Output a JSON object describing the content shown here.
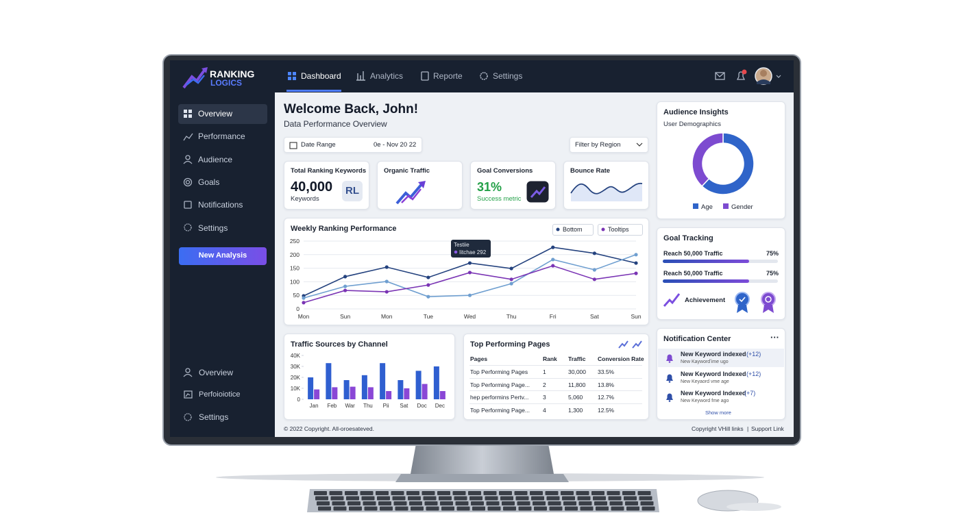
{
  "brand": {
    "line1": "RANKING",
    "line2": "LOGICS"
  },
  "topnav": [
    "Dashboard",
    "Analytics",
    "Reporte",
    "Settings"
  ],
  "sidebar": {
    "items": [
      "Overview",
      "Performance",
      "Audience",
      "Goals",
      "Notifications",
      "Settings"
    ],
    "button": "New Analysis",
    "bottom_items": [
      "Overview",
      "Perfoioiotice",
      "Settings"
    ]
  },
  "header": {
    "title": "Welcome Back, John!",
    "subtitle": "Data Performance Overview",
    "date_label": "Date Range",
    "date_value": "0e - Nov 20 22",
    "filter": "Filter by Region"
  },
  "kpis": [
    {
      "title": "Total Ranking Keywords",
      "value": "40,000",
      "unit": "Keywords",
      "badge": "RL"
    },
    {
      "title": "Organic Traffic"
    },
    {
      "title": "Goal Conversions",
      "value": "31%",
      "unit": "Success metric"
    },
    {
      "title": "Bounce Rate"
    }
  ],
  "chart_data": [
    {
      "type": "line",
      "title": "Weekly Ranking Performance",
      "categories": [
        "Mon",
        "Sun",
        "Mon",
        "Tue",
        "Wed",
        "Thu",
        "Fri",
        "Sat",
        "Sun"
      ],
      "series": [
        {
          "color": "#24427e",
          "values": [
            48,
            119,
            154,
            116,
            169,
            149,
            227,
            205,
            169
          ]
        },
        {
          "color": "#6f9fd0",
          "values": [
            40,
            83,
            101,
            45,
            50,
            93,
            182,
            144,
            200
          ]
        },
        {
          "color": "#7a34b4",
          "values": [
            23,
            68,
            63,
            88,
            134,
            109,
            159,
            109,
            131
          ]
        }
      ],
      "ylim": [
        0,
        250
      ],
      "yticks": [
        0,
        50,
        100,
        150,
        200,
        250
      ],
      "grid": true,
      "controls": [
        "Bottom",
        "Tooltips"
      ],
      "tooltip": {
        "title": "Testiie",
        "text": "Iitchae 292"
      }
    },
    {
      "type": "bar",
      "title": "Traffic Sources by Channel",
      "categories": [
        "Jan",
        "Feb",
        "War",
        "Thu",
        "Pii",
        "Sat",
        "Doc",
        "Dec"
      ],
      "series": [
        {
          "color": "#2f5fd0",
          "values": [
            20000,
            33000,
            17500,
            22000,
            33000,
            17500,
            26000,
            30000
          ]
        },
        {
          "color": "#8a47d6",
          "values": [
            9000,
            11000,
            11500,
            11000,
            7500,
            10000,
            14000,
            7500
          ]
        }
      ],
      "ylim": [
        0,
        40000
      ],
      "yticks": [
        0,
        {
          "value": 10000,
          "label": "10K"
        },
        {
          "value": 20000,
          "label": "20K"
        },
        {
          "value": 30000,
          "label": "30K"
        },
        {
          "value": 40000,
          "label": "40K"
        }
      ]
    },
    {
      "type": "pie",
      "title": "Audience Insights",
      "subtitle": "User Demographics",
      "categories": [
        "Age",
        "Gender"
      ],
      "values": [
        62,
        38
      ],
      "colors": [
        "#2f64c9",
        "#7d4bd0"
      ]
    }
  ],
  "top_pages": {
    "title": "Top Performing Pages",
    "columns": [
      "Pages",
      "Rank",
      "Traffic",
      "Conversion Rate"
    ],
    "rows": [
      [
        "Top Performing Pages",
        "1",
        "30,000",
        "33.5%"
      ],
      [
        "Top Performing Page...",
        "2",
        "11,800",
        "13.8%"
      ],
      [
        "hep performins Pertv...",
        "3",
        "5,060",
        "12.7%"
      ],
      [
        "Top Performing Page...",
        "4",
        "1,300",
        "12.5%"
      ]
    ]
  },
  "goal_tracking": {
    "title": "Goal Tracking",
    "xlim": [
      0,
      100
    ],
    "goals": [
      {
        "label": "Reach 50,000 Traffic",
        "value": 75,
        "value_label": "75%"
      },
      {
        "label": "Reach 50,000 Traffic",
        "value": 75,
        "value_label": "75%"
      }
    ],
    "achievement": "Achievement"
  },
  "notifications": {
    "title": "Notification Center",
    "items": [
      {
        "title": "New Keyword indexed",
        "count": "(+12)",
        "sub": "New Kaywordʼime ugo"
      },
      {
        "title": "New Keyword Indexed",
        "count": "(+12)",
        "sub": "New Keyaord vme age"
      },
      {
        "title": "New Keyword Indexed",
        "count": "(+7)",
        "sub": "New Keyword fme ago"
      }
    ],
    "more": "Show more"
  },
  "footer": {
    "left": "© 2022 Copyright. All-oroesateved.",
    "right": "Copyright VHill links",
    "support": "Support Link"
  }
}
